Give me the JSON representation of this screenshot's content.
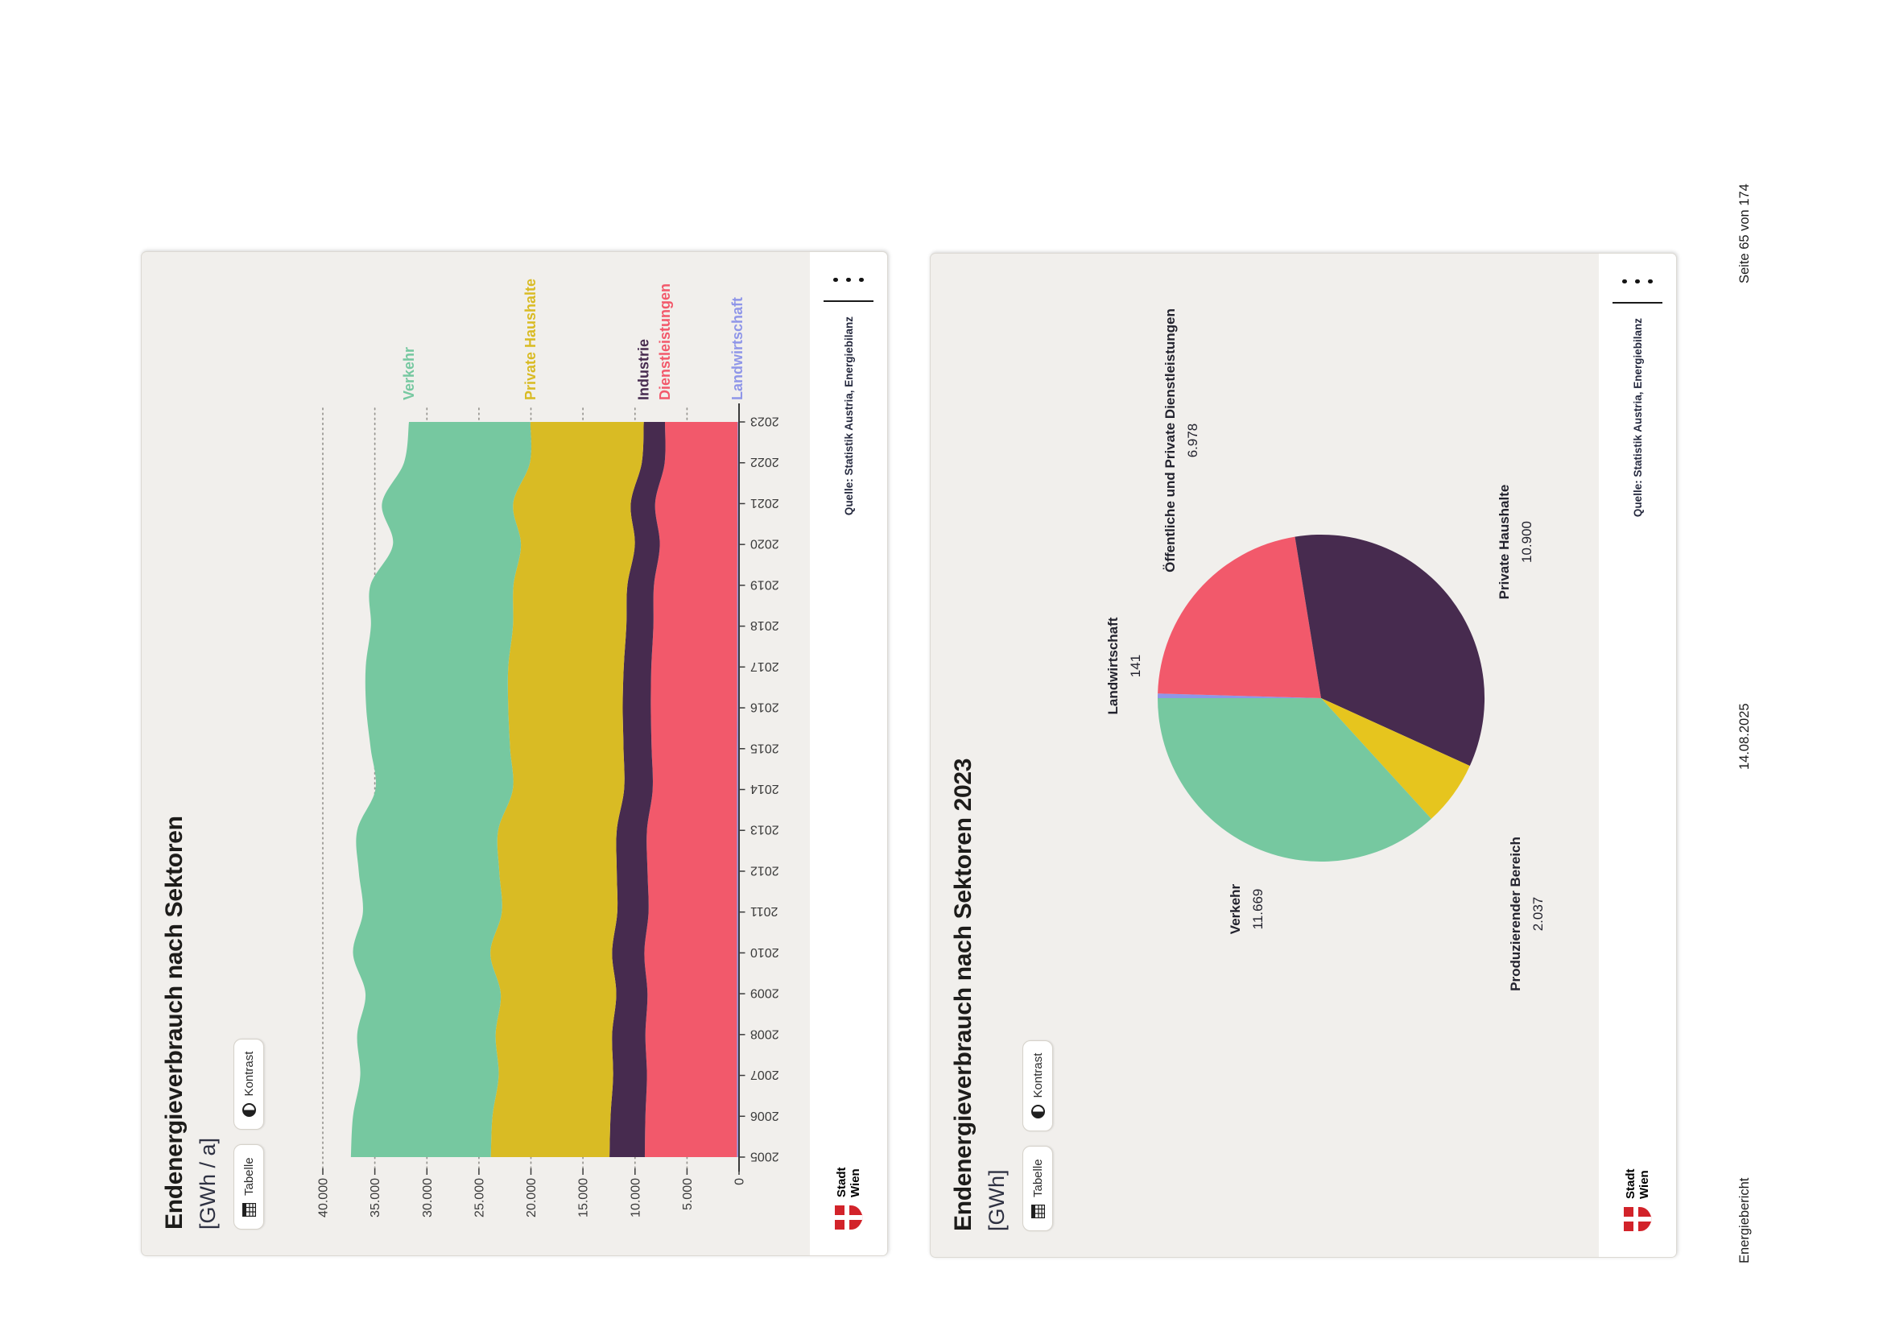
{
  "page": {
    "background": "#ffffff",
    "footer": {
      "report": "Energiebericht",
      "date": "14.08.2025",
      "page": "Seite 65 von 174"
    }
  },
  "ui": {
    "table_button": "Tabelle",
    "contrast_button": "Kontrast",
    "source": "Quelle: Statistik Austria, Energiebilanz",
    "logo": {
      "line1": "Stadt",
      "line2": "Wien"
    },
    "brand_red": "#d2232a",
    "card_background": "#f1efec"
  },
  "area_card": {
    "title": "Endenergieverbrauch nach Sektoren",
    "subtitle": "[GWh / a]"
  },
  "pie_card": {
    "title": "Endenergieverbrauch nach Sektoren 2023",
    "subtitle": "[GWh]"
  },
  "chart_data": [
    {
      "type": "area",
      "stacked": true,
      "stack_order": "first-series-on-top",
      "title": "Endenergieverbrauch nach Sektoren",
      "unit": "GWh / a",
      "x": [
        2005,
        2006,
        2007,
        2008,
        2009,
        2010,
        2011,
        2012,
        2013,
        2014,
        2015,
        2016,
        2017,
        2018,
        2019,
        2020,
        2021,
        2022,
        2023
      ],
      "ylim": [
        0,
        40000
      ],
      "ytick_step": 5000,
      "ytick_labels": [
        "0",
        "5.000",
        "10.000",
        "15.000",
        "20.000",
        "25.000",
        "30.000",
        "35.000",
        "40.000"
      ],
      "grid": "dotted-horizontal",
      "legend_position": "right-at-series-end",
      "series": [
        {
          "name": "Verkehr",
          "color": "#76c8a0",
          "values": [
            13450,
            13400,
            13300,
            13300,
            13000,
            13200,
            13350,
            13500,
            13550,
            13200,
            13400,
            13650,
            13700,
            13650,
            13750,
            12300,
            12600,
            12100,
            11669
          ]
        },
        {
          "name": "Private Haushalte",
          "color": "#d9bb24",
          "values": [
            11400,
            11350,
            11000,
            11200,
            11100,
            11700,
            11100,
            11300,
            11400,
            10700,
            10900,
            11000,
            11100,
            10900,
            10950,
            10950,
            11300,
            10750,
            10900
          ]
        },
        {
          "name": "Industrie",
          "color": "#472b4f",
          "values": [
            3400,
            3350,
            3250,
            3200,
            3000,
            3100,
            3000,
            2950,
            2900,
            2750,
            2700,
            2700,
            2650,
            2600,
            2550,
            2400,
            2350,
            2200,
            2037
          ]
        },
        {
          "name": "Dienstleistungen",
          "color": "#f2596b",
          "values": [
            8850,
            8800,
            8650,
            8800,
            8600,
            8900,
            8500,
            8600,
            8650,
            8100,
            8200,
            8300,
            8250,
            8050,
            8000,
            7450,
            7900,
            7000,
            6978
          ]
        },
        {
          "name": "Landwirtschaft",
          "color": "#8f96e8",
          "values": [
            200,
            200,
            200,
            200,
            200,
            200,
            200,
            200,
            200,
            200,
            200,
            180,
            180,
            180,
            180,
            160,
            160,
            150,
            141
          ]
        }
      ],
      "source": "Quelle: Statistik Austria, Energiebilanz"
    },
    {
      "type": "pie",
      "title": "Endenergieverbrauch nach Sektoren 2023",
      "unit": "GWh",
      "direction": "clockwise",
      "start_angle_deg": 0,
      "total": 31725,
      "slices": [
        {
          "label": "Landwirtschaft",
          "value": 141,
          "display_value": "141",
          "color": "#8f96e8"
        },
        {
          "label": "Öffentliche und Private Dienstleistungen",
          "value": 6978,
          "display_value": "6.978",
          "color": "#f2596b"
        },
        {
          "label": "Private Haushalte",
          "value": 10900,
          "display_value": "10.900",
          "color": "#472b4f"
        },
        {
          "label": "Produzierender Bereich",
          "value": 2037,
          "display_value": "2.037",
          "color": "#e6c51e"
        },
        {
          "label": "Verkehr",
          "value": 11669,
          "display_value": "11.669",
          "color": "#76c8a0"
        }
      ],
      "source": "Quelle: Statistik Austria, Energiebilanz"
    }
  ]
}
